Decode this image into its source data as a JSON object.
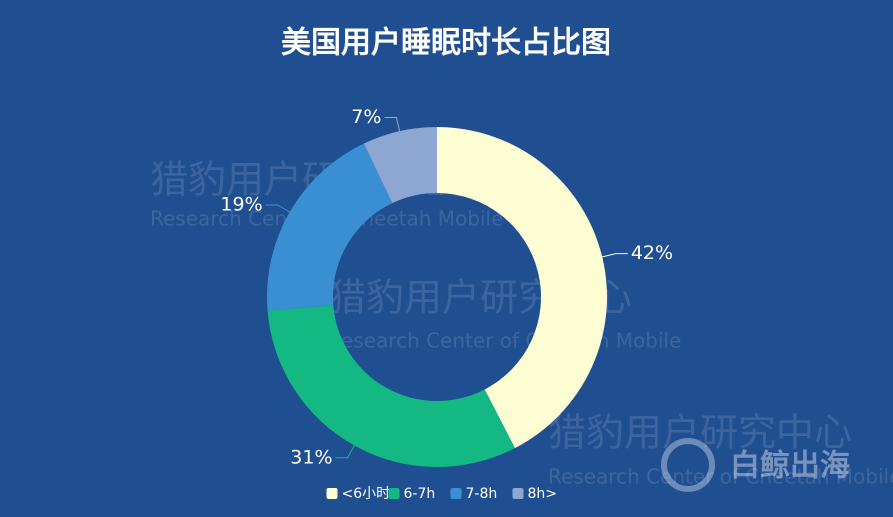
{
  "chart_data": {
    "type": "donut",
    "title": "美国用户睡眠时长占比图",
    "categories": [
      "<6小时",
      "6-7h",
      "7-8h",
      "8h>"
    ],
    "values": [
      42,
      31,
      19,
      7
    ],
    "value_labels": [
      "42%",
      "31%",
      "19%",
      "7%"
    ],
    "colors": [
      "#fcfdd2",
      "#14b883",
      "#3a8fd2",
      "#8ea7d2"
    ],
    "legend": "bottom"
  },
  "watermark": {
    "cn": "猎豹用户研究中心",
    "en": "Research Center of Cheetah Mobile",
    "brand": "白鲸出海"
  }
}
